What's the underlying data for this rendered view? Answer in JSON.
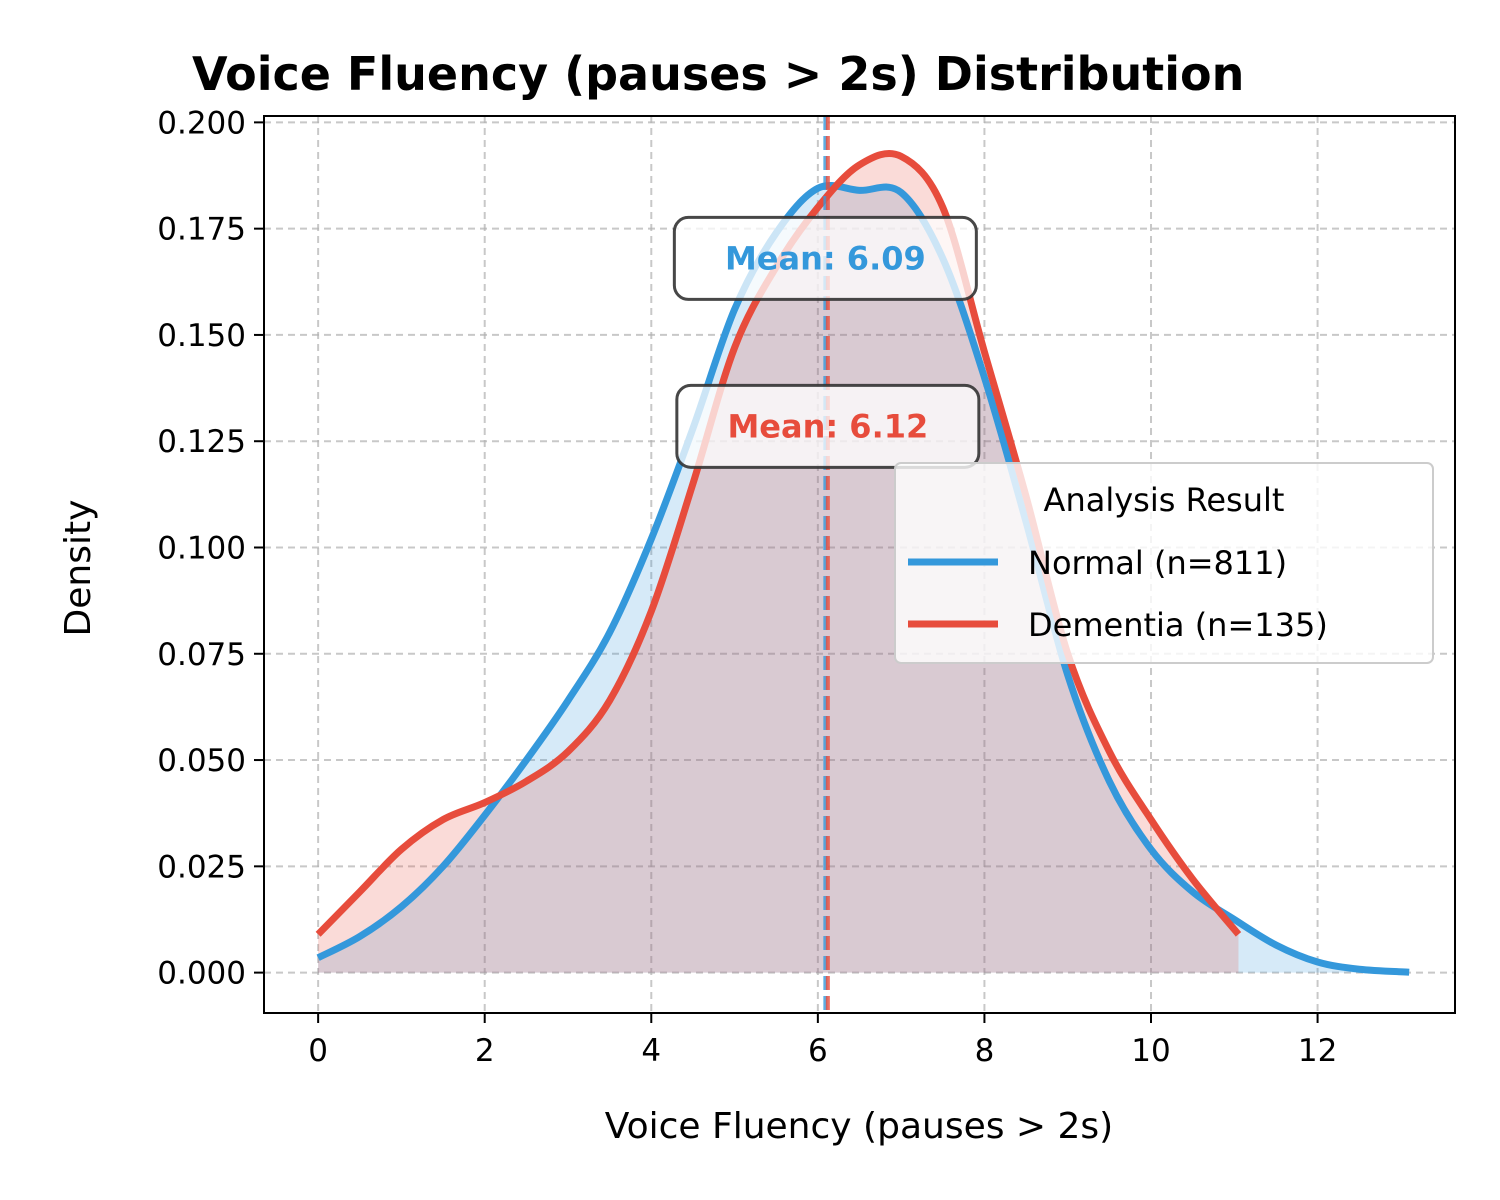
{
  "chart_data": {
    "type": "area",
    "title": "Voice Fluency (pauses > 2s) Distribution",
    "xlabel": "Voice Fluency (pauses > 2s)",
    "ylabel": "Density",
    "xlim": [
      -0.65,
      13.65
    ],
    "ylim": [
      -0.0095,
      0.2015
    ],
    "xticks": [
      0,
      2,
      4,
      6,
      8,
      10,
      12
    ],
    "yticks": [
      0.0,
      0.025,
      0.05,
      0.075,
      0.1,
      0.125,
      0.15,
      0.175,
      0.2
    ],
    "xtick_labels": [
      "0",
      "2",
      "4",
      "6",
      "8",
      "10",
      "12"
    ],
    "ytick_labels": [
      "0.000",
      "0.025",
      "0.050",
      "0.075",
      "0.100",
      "0.125",
      "0.150",
      "0.175",
      "0.200"
    ],
    "grid": true,
    "legend": {
      "title": "Analysis Result",
      "placement": "center-right"
    },
    "series": [
      {
        "name": "Normal (n=811)",
        "color": "#3498db",
        "mean": 6.09,
        "mean_label": "Mean: 6.09",
        "x": [
          0,
          0.5,
          1,
          1.5,
          2,
          2.5,
          3,
          3.5,
          4,
          4.5,
          5,
          5.5,
          6,
          6.5,
          7,
          7.5,
          8,
          8.5,
          9,
          9.5,
          10,
          10.5,
          11,
          11.5,
          12,
          12.5,
          13.1
        ],
        "y": [
          0.0035,
          0.0085,
          0.0155,
          0.025,
          0.037,
          0.05,
          0.064,
          0.08,
          0.102,
          0.128,
          0.156,
          0.174,
          0.1845,
          0.184,
          0.1835,
          0.168,
          0.14,
          0.106,
          0.07,
          0.045,
          0.029,
          0.019,
          0.0125,
          0.0065,
          0.0025,
          0.0008,
          0.0001
        ]
      },
      {
        "name": "Dementia (n=135)",
        "color": "#e74c3c",
        "mean": 6.12,
        "mean_label": "Mean: 6.12",
        "x": [
          0,
          0.5,
          1,
          1.5,
          2,
          2.5,
          3,
          3.5,
          4,
          4.5,
          5,
          5.5,
          6,
          6.5,
          7,
          7.5,
          8,
          8.5,
          9,
          9.5,
          10,
          10.5,
          11.05
        ],
        "y": [
          0.009,
          0.019,
          0.029,
          0.036,
          0.04,
          0.045,
          0.052,
          0.064,
          0.085,
          0.115,
          0.147,
          0.166,
          0.18,
          0.19,
          0.192,
          0.18,
          0.146,
          0.112,
          0.075,
          0.052,
          0.036,
          0.022,
          0.009
        ]
      }
    ]
  }
}
